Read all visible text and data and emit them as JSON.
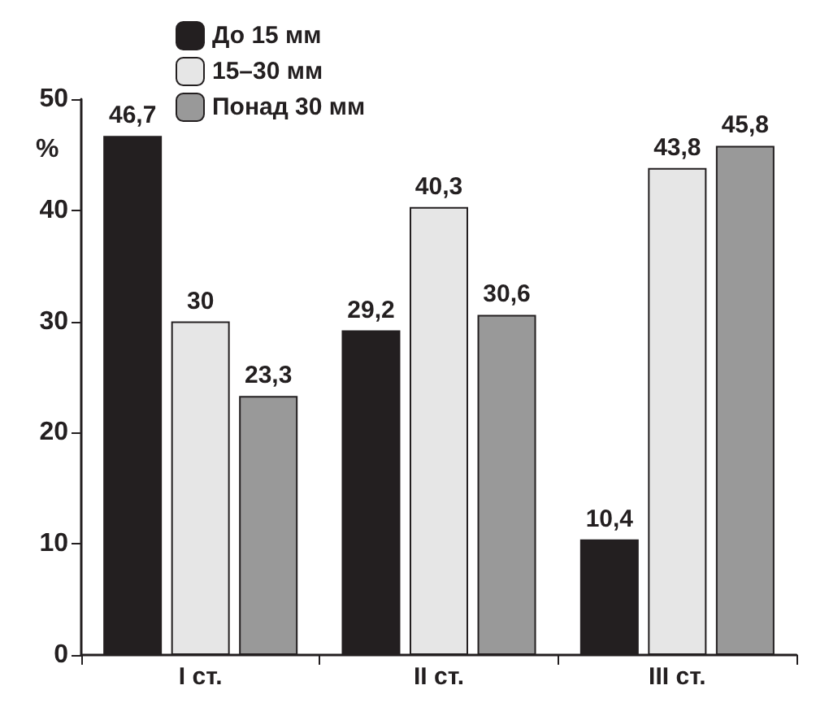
{
  "chart_data": {
    "type": "bar",
    "ylabel": "%",
    "categories": [
      "I ст.",
      "II ст.",
      "III ст."
    ],
    "series": [
      {
        "name": "До 15 мм",
        "color": "#231f20",
        "values": [
          46.7,
          29.2,
          10.4
        ],
        "value_labels": [
          "46,7",
          "29,2",
          "10,4"
        ]
      },
      {
        "name": "15–30 мм",
        "color": "#e6e6e6",
        "values": [
          30,
          40.3,
          43.8
        ],
        "value_labels": [
          "30",
          "40,3",
          "43,8"
        ]
      },
      {
        "name": "Понад 30 мм",
        "color": "#999999",
        "values": [
          23.3,
          30.6,
          45.8
        ],
        "value_labels": [
          "23,3",
          "30,6",
          "45,8"
        ]
      }
    ],
    "ylim": [
      0,
      50
    ],
    "yticks": [
      0,
      10,
      20,
      30,
      40,
      50
    ],
    "legend": "top",
    "grid": false
  }
}
